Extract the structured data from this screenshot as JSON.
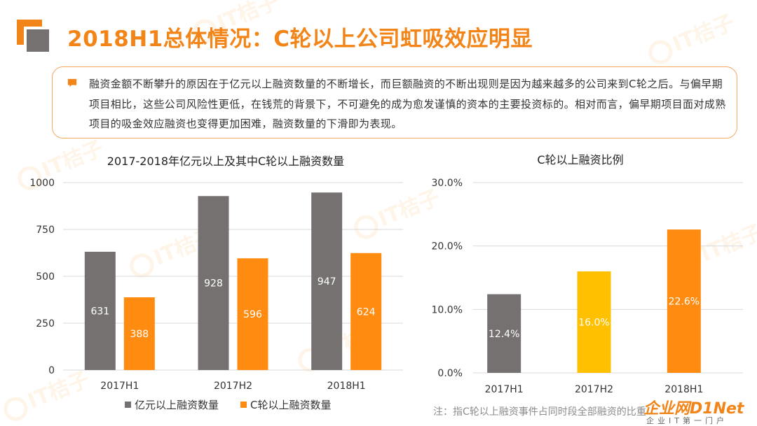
{
  "header": {
    "title": "2018H1总体情况：C轮以上公司虹吸效应明显"
  },
  "note": {
    "text": "融资金额不断攀升的原因在于亿元以上融资数量的不断增长，而巨额融资的不断出现则是因为越来越多的公司来到C轮之后。与偏早期项目相比，这些公司风险性更低，在钱荒的背景下，不可避免的成为愈发谨慎的资本的主要投资标的。相对而言，偏早期项目面对成熟项目的吸金效应融资也变得更加困难，融资数量的下滑即为表现。"
  },
  "watermark": {
    "text": "IT桔子"
  },
  "colors": {
    "accent": "#F28418",
    "gray": "#767171",
    "orange": "#FF8C11",
    "yellow": "#FFC000"
  },
  "chart_data": [
    {
      "type": "bar",
      "title": "2017-2018年亿元以上及其中C轮以上融资数量",
      "categories": [
        "2017H1",
        "2017H2",
        "2018H1"
      ],
      "series": [
        {
          "name": "亿元以上融资数量",
          "values": [
            631,
            928,
            947
          ],
          "color": "#767171"
        },
        {
          "name": "C轮以上融资数量",
          "values": [
            388,
            596,
            624
          ],
          "color": "#FF8C11"
        }
      ],
      "ylim": [
        0,
        1000
      ],
      "yticks": [
        0,
        250,
        500,
        750,
        1000
      ],
      "legend": "bottom",
      "grid": true
    },
    {
      "type": "bar",
      "title": "C轮以上融资比例",
      "categories": [
        "2017H1",
        "2017H2",
        "2018H1"
      ],
      "values": [
        12.4,
        16.0,
        22.6
      ],
      "value_labels": [
        "12.4%",
        "16.0%",
        "22.6%"
      ],
      "colors": [
        "#767171",
        "#FFC000",
        "#FF8C11"
      ],
      "ylim": [
        0,
        30
      ],
      "yticks": [
        "0.0%",
        "10.0%",
        "20.0%",
        "30.0%"
      ],
      "grid": true
    }
  ],
  "footnote": "注：指C轮以上融资事件占同时段全部融资的比重",
  "corner_logo": {
    "main": "企业网D1Net",
    "sub": "企业IT第一门户"
  }
}
